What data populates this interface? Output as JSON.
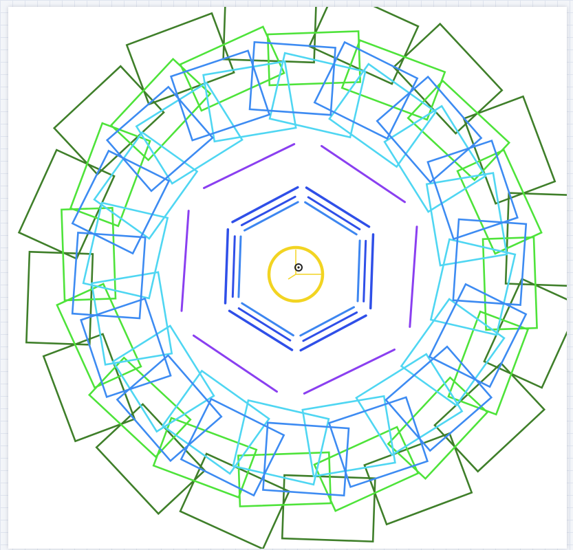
{
  "diagram": {
    "kind": "concentric-detector-layout",
    "layers": [
      {
        "name": "outer-dark-green-ring",
        "shape": "tilted-rectangles",
        "count": 16,
        "color": "#3f7f2a"
      },
      {
        "name": "outer-light-green-ring",
        "shape": "tilted-rectangles",
        "count": 16,
        "color": "#4ee33a"
      },
      {
        "name": "blue-module-ring",
        "shape": "tilted-rectangles",
        "count": 16,
        "color": "#3d8bf2"
      },
      {
        "name": "cyan-module-ring",
        "shape": "tilted-rectangles",
        "count": 16,
        "color": "#4fd6f2"
      },
      {
        "name": "purple-hexagon",
        "shape": "hexagon-segments",
        "count": 6,
        "color": "#8a3ff0"
      },
      {
        "name": "outer-blue-hexagon",
        "shape": "hexagon-segments",
        "count": 6,
        "color": "#2f4fe8"
      },
      {
        "name": "inner-blue-hexagon",
        "shape": "hexagon-segments",
        "count": 6,
        "color": "#3d86f0"
      },
      {
        "name": "central-circle",
        "shape": "circle",
        "count": 1,
        "color": "#f2d422"
      }
    ],
    "center_marker_color": "#222222",
    "axes_color": "#f2d422"
  }
}
